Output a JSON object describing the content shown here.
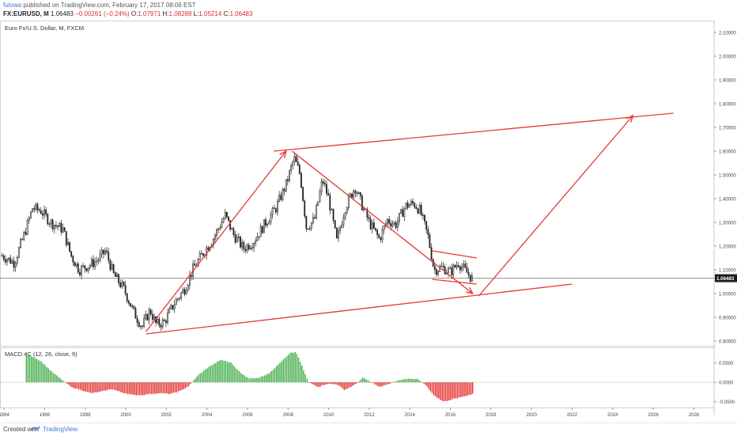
{
  "header": {
    "publisher_user": "fulowa",
    "publisher_text": "published on TradingView.com, February 17, 2017 08:06 EST",
    "symbol": "FX:EURUSD, M",
    "last": "1.06483",
    "change": "−0.00261 (−0.24%)",
    "o_label": "O:",
    "o_value": "1.07971",
    "h_label": "H:",
    "h_value": "1.08288",
    "l_label": "L:",
    "l_value": "1.05214",
    "c_label": "C:",
    "c_value": "1.06483"
  },
  "footer": {
    "created_with": "Created with",
    "brand": "TradingView"
  },
  "colors": {
    "up": "#222222",
    "down": "#222222",
    "drawing": "#e53935",
    "macd_pos": "#4caf50",
    "macd_neg": "#e53935",
    "price_tag": "#1a1a1a",
    "grid_line": "#cfcfcf"
  },
  "chart_data": [
    {
      "type": "candlestick",
      "title": "Euro Fx/U.S. Dollar, M, FXCM",
      "y_axis": {
        "position": "right",
        "min": 0.78,
        "max": 2.15,
        "ticks": [
          "0.80000",
          "0.90000",
          "1.00000",
          "1.10000",
          "1.20000",
          "1.30000",
          "1.40000",
          "1.50000",
          "1.60000",
          "1.70000",
          "1.80000",
          "1.90000",
          "2.00000",
          "2.10000"
        ]
      },
      "x_axis": {
        "min": 1993.8,
        "max": 2029.0,
        "ticks": [
          "1994",
          "1996",
          "1998",
          "2000",
          "2002",
          "2004",
          "2006",
          "2008",
          "2010",
          "2012",
          "2014",
          "2016",
          "2018",
          "2020",
          "2022",
          "2024",
          "2026",
          "2028"
        ]
      },
      "last_price": {
        "value": 1.06483,
        "label": "1.06483"
      },
      "price_path": [
        [
          1993.9,
          1.16
        ],
        [
          1994.5,
          1.13
        ],
        [
          1995.0,
          1.25
        ],
        [
          1995.4,
          1.36
        ],
        [
          1995.8,
          1.35
        ],
        [
          1996.3,
          1.3
        ],
        [
          1996.9,
          1.27
        ],
        [
          1997.3,
          1.16
        ],
        [
          1997.7,
          1.1
        ],
        [
          1998.2,
          1.12
        ],
        [
          1998.6,
          1.14
        ],
        [
          1999.0,
          1.18
        ],
        [
          1999.4,
          1.08
        ],
        [
          1999.9,
          1.02
        ],
        [
          2000.4,
          0.92
        ],
        [
          2000.8,
          0.86
        ],
        [
          2001.2,
          0.93
        ],
        [
          2001.5,
          0.87
        ],
        [
          2001.9,
          0.88
        ],
        [
          2002.4,
          0.96
        ],
        [
          2002.9,
          1.02
        ],
        [
          2003.3,
          1.1
        ],
        [
          2003.8,
          1.17
        ],
        [
          2004.3,
          1.23
        ],
        [
          2004.9,
          1.33
        ],
        [
          2005.3,
          1.25
        ],
        [
          2005.8,
          1.19
        ],
        [
          2006.3,
          1.22
        ],
        [
          2006.9,
          1.3
        ],
        [
          2007.4,
          1.36
        ],
        [
          2007.9,
          1.46
        ],
        [
          2008.3,
          1.57
        ],
        [
          2008.6,
          1.5
        ],
        [
          2008.9,
          1.28
        ],
        [
          2009.3,
          1.31
        ],
        [
          2009.7,
          1.48
        ],
        [
          2010.0,
          1.4
        ],
        [
          2010.4,
          1.22
        ],
        [
          2010.8,
          1.36
        ],
        [
          2011.3,
          1.45
        ],
        [
          2011.7,
          1.36
        ],
        [
          2012.0,
          1.3
        ],
        [
          2012.5,
          1.23
        ],
        [
          2012.9,
          1.31
        ],
        [
          2013.3,
          1.29
        ],
        [
          2013.8,
          1.37
        ],
        [
          2014.2,
          1.38
        ],
        [
          2014.5,
          1.35
        ],
        [
          2014.9,
          1.24
        ],
        [
          2015.2,
          1.1
        ],
        [
          2015.6,
          1.11
        ],
        [
          2016.0,
          1.09
        ],
        [
          2016.4,
          1.13
        ],
        [
          2016.8,
          1.09
        ],
        [
          2017.1,
          1.06
        ]
      ],
      "drawings": [
        {
          "kind": "line",
          "from": [
            2001.0,
            0.83
          ],
          "to": [
            2022.0,
            1.04
          ]
        },
        {
          "kind": "line",
          "from": [
            2007.3,
            1.6
          ],
          "to": [
            2027.0,
            1.76
          ]
        },
        {
          "kind": "arrow",
          "from": [
            2001.0,
            0.84
          ],
          "to": [
            2007.9,
            1.6
          ]
        },
        {
          "kind": "arrow",
          "from": [
            2008.2,
            1.6
          ],
          "to": [
            2017.1,
            1.0
          ]
        },
        {
          "kind": "arrow",
          "from": [
            2017.4,
            0.99
          ],
          "to": [
            2025.0,
            1.75
          ]
        },
        {
          "kind": "line",
          "from": [
            2015.1,
            1.18
          ],
          "to": [
            2017.3,
            1.15
          ]
        },
        {
          "kind": "line",
          "from": [
            2015.1,
            1.06
          ],
          "to": [
            2017.3,
            1.04
          ]
        }
      ]
    },
    {
      "type": "histogram",
      "title": "MACD 4C (12, 26, close, 9)",
      "y_axis": {
        "position": "right",
        "min": -0.065,
        "max": 0.09,
        "ticks": [
          "0.0500",
          "0.0000",
          "-0.0500"
        ]
      },
      "macd_path": [
        [
          1995.1,
          0.075
        ],
        [
          1995.8,
          0.055
        ],
        [
          1996.4,
          0.025
        ],
        [
          1996.9,
          0.005
        ],
        [
          1997.3,
          -0.012
        ],
        [
          1997.8,
          -0.02
        ],
        [
          1998.3,
          -0.028
        ],
        [
          1998.8,
          -0.024
        ],
        [
          1999.3,
          -0.017
        ],
        [
          1999.8,
          -0.026
        ],
        [
          2000.4,
          -0.033
        ],
        [
          2000.8,
          -0.033
        ],
        [
          2001.2,
          -0.03
        ],
        [
          2001.7,
          -0.028
        ],
        [
          2002.2,
          -0.03
        ],
        [
          2002.7,
          -0.022
        ],
        [
          2003.1,
          -0.01
        ],
        [
          2003.6,
          0.02
        ],
        [
          2004.1,
          0.04
        ],
        [
          2004.7,
          0.058
        ],
        [
          2005.2,
          0.05
        ],
        [
          2005.7,
          0.022
        ],
        [
          2006.1,
          0.01
        ],
        [
          2006.6,
          0.012
        ],
        [
          2007.1,
          0.025
        ],
        [
          2007.6,
          0.05
        ],
        [
          2008.1,
          0.075
        ],
        [
          2008.4,
          0.078
        ],
        [
          2008.7,
          0.04
        ],
        [
          2009.0,
          0.0
        ],
        [
          2009.5,
          -0.012
        ],
        [
          2009.9,
          -0.004
        ],
        [
          2010.4,
          -0.005
        ],
        [
          2010.8,
          -0.02
        ],
        [
          2011.3,
          -0.006
        ],
        [
          2011.7,
          0.012
        ],
        [
          2012.1,
          0.0
        ],
        [
          2012.5,
          -0.012
        ],
        [
          2013.0,
          -0.004
        ],
        [
          2013.5,
          0.006
        ],
        [
          2014.0,
          0.01
        ],
        [
          2014.4,
          0.008
        ],
        [
          2014.8,
          -0.008
        ],
        [
          2015.2,
          -0.035
        ],
        [
          2015.7,
          -0.05
        ],
        [
          2016.2,
          -0.042
        ],
        [
          2016.7,
          -0.036
        ],
        [
          2017.1,
          -0.03
        ]
      ]
    }
  ]
}
